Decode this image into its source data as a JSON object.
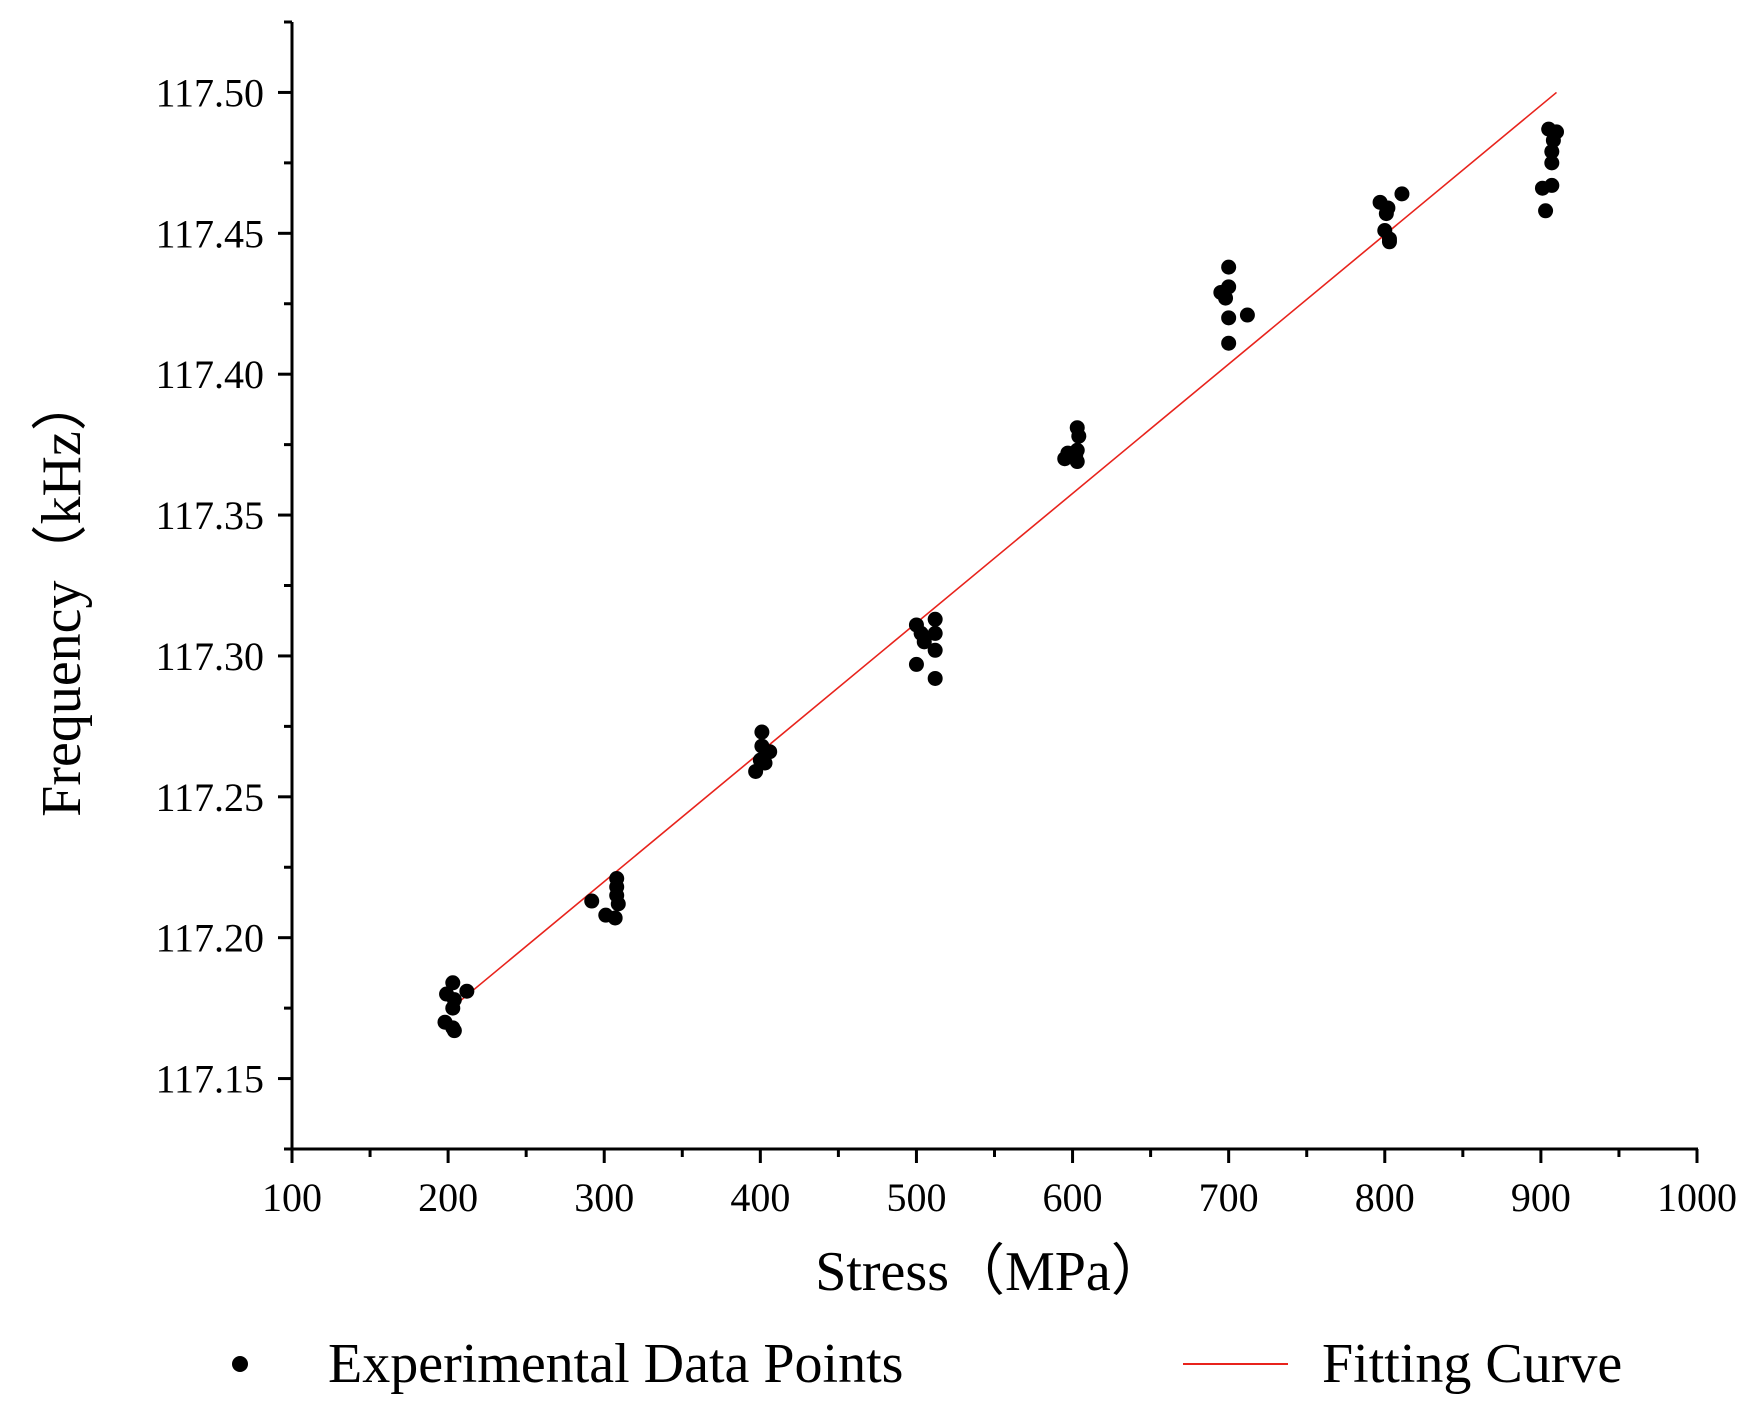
{
  "chart_data": {
    "type": "scatter",
    "xlabel": "Stress（MPa）",
    "ylabel": "Frequency（kHz）",
    "xlim": [
      100,
      1000
    ],
    "ylim": [
      117.125,
      117.525
    ],
    "xticks": [
      100,
      200,
      300,
      400,
      500,
      600,
      700,
      800,
      900,
      1000
    ],
    "xtick_labels": [
      "100",
      "200",
      "300",
      "400",
      "500",
      "600",
      "700",
      "800",
      "900",
      "1000"
    ],
    "yticks": [
      117.15,
      117.2,
      117.25,
      117.3,
      117.35,
      117.4,
      117.45,
      117.5
    ],
    "ytick_labels": [
      "117.15",
      "117.20",
      "117.25",
      "117.30",
      "117.35",
      "117.40",
      "117.45",
      "117.50"
    ],
    "grid": false,
    "legend_position": "bottom",
    "series": [
      {
        "name": "Experimental Data Points",
        "kind": "scatter",
        "color": "#000000",
        "points": [
          [
            198,
            117.17
          ],
          [
            199,
            117.18
          ],
          [
            203,
            117.184
          ],
          [
            204,
            117.178
          ],
          [
            203,
            117.175
          ],
          [
            204,
            117.167
          ],
          [
            203,
            117.168
          ],
          [
            212,
            117.181
          ],
          [
            292,
            117.213
          ],
          [
            301,
            117.208
          ],
          [
            308,
            117.221
          ],
          [
            308,
            117.218
          ],
          [
            308,
            117.215
          ],
          [
            309,
            117.212
          ],
          [
            307,
            117.207
          ],
          [
            397,
            117.259
          ],
          [
            400,
            117.263
          ],
          [
            401,
            117.268
          ],
          [
            401,
            117.273
          ],
          [
            403,
            117.262
          ],
          [
            406,
            117.266
          ],
          [
            500,
            117.311
          ],
          [
            503,
            117.308
          ],
          [
            505,
            117.305
          ],
          [
            500,
            117.297
          ],
          [
            512,
            117.313
          ],
          [
            512,
            117.308
          ],
          [
            512,
            117.302
          ],
          [
            512,
            117.292
          ],
          [
            595,
            117.37
          ],
          [
            597,
            117.372
          ],
          [
            603,
            117.381
          ],
          [
            604,
            117.378
          ],
          [
            603,
            117.373
          ],
          [
            602,
            117.371
          ],
          [
            603,
            117.369
          ],
          [
            695,
            117.429
          ],
          [
            698,
            117.427
          ],
          [
            700,
            117.438
          ],
          [
            700,
            117.431
          ],
          [
            700,
            117.42
          ],
          [
            700,
            117.411
          ],
          [
            712,
            117.421
          ],
          [
            797,
            117.461
          ],
          [
            802,
            117.459
          ],
          [
            801,
            117.457
          ],
          [
            800,
            117.451
          ],
          [
            803,
            117.448
          ],
          [
            803,
            117.447
          ],
          [
            811,
            117.464
          ],
          [
            901,
            117.466
          ],
          [
            903,
            117.458
          ],
          [
            905,
            117.487
          ],
          [
            907,
            117.467
          ],
          [
            907,
            117.479
          ],
          [
            907,
            117.475
          ],
          [
            908,
            117.483
          ],
          [
            910,
            117.486
          ]
        ]
      },
      {
        "name": "Fitting Curve",
        "kind": "line",
        "color": "#e8231c",
        "points": [
          [
            200,
            117.174
          ],
          [
            910,
            117.5
          ]
        ]
      }
    ]
  }
}
